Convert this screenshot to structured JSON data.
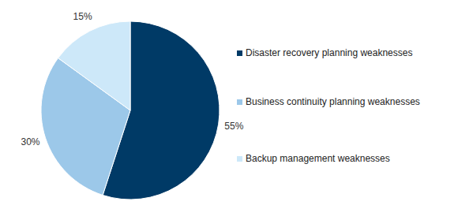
{
  "chart_data": {
    "type": "pie",
    "categories": [
      "Disaster recovery planning weaknesses",
      "Business continuity planning weaknesses",
      "Backup management weaknesses"
    ],
    "values": [
      55,
      30,
      15
    ],
    "value_labels": [
      "55%",
      "30%",
      "15%"
    ],
    "colors": [
      "#003a66",
      "#9cc8e9",
      "#cde8f9"
    ],
    "data_labels": true,
    "legend": "right"
  }
}
